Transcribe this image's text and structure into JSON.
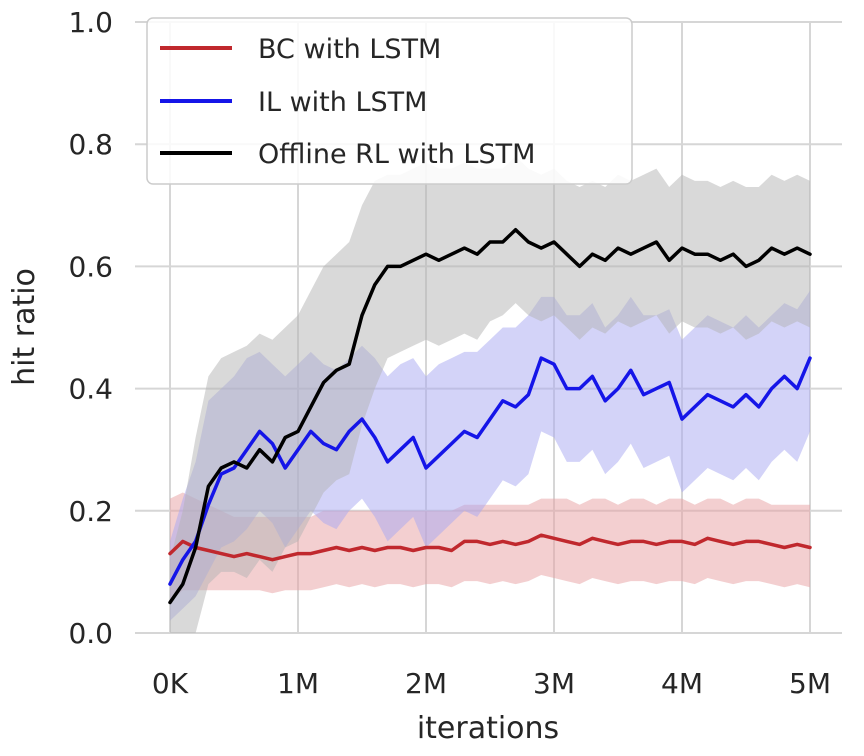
{
  "chart_data": {
    "type": "line",
    "title": "",
    "xlabel": "iterations",
    "ylabel": "hit ratio",
    "xlim": [
      0,
      5000000
    ],
    "ylim": [
      0.0,
      1.0
    ],
    "grid": true,
    "legend_position": "top-left",
    "x_ticks": [
      0,
      1000000,
      2000000,
      3000000,
      4000000,
      5000000
    ],
    "x_tick_labels": [
      "0K",
      "1M",
      "2M",
      "3M",
      "4M",
      "5M"
    ],
    "y_ticks": [
      0.0,
      0.2,
      0.4,
      0.6,
      0.8,
      1.0
    ],
    "y_tick_labels": [
      "0.0",
      "0.2",
      "0.4",
      "0.6",
      "0.8",
      "1.0"
    ],
    "series": [
      {
        "name": "BC with LSTM",
        "color": "#c0282d",
        "band_color": "#e8a0a2",
        "x": [
          0,
          100000,
          200000,
          300000,
          400000,
          500000,
          600000,
          700000,
          800000,
          900000,
          1000000,
          1100000,
          1200000,
          1300000,
          1400000,
          1500000,
          1600000,
          1700000,
          1800000,
          1900000,
          2000000,
          2100000,
          2200000,
          2300000,
          2400000,
          2500000,
          2600000,
          2700000,
          2800000,
          2900000,
          3000000,
          3100000,
          3200000,
          3300000,
          3400000,
          3500000,
          3600000,
          3700000,
          3800000,
          3900000,
          4000000,
          4100000,
          4200000,
          4300000,
          4400000,
          4500000,
          4600000,
          4700000,
          4800000,
          4900000,
          5000000
        ],
        "y": [
          0.13,
          0.15,
          0.14,
          0.135,
          0.13,
          0.125,
          0.13,
          0.125,
          0.12,
          0.125,
          0.13,
          0.13,
          0.135,
          0.14,
          0.135,
          0.14,
          0.135,
          0.14,
          0.14,
          0.135,
          0.14,
          0.14,
          0.135,
          0.15,
          0.15,
          0.145,
          0.15,
          0.145,
          0.15,
          0.16,
          0.155,
          0.15,
          0.145,
          0.155,
          0.15,
          0.145,
          0.15,
          0.15,
          0.145,
          0.15,
          0.15,
          0.145,
          0.155,
          0.15,
          0.145,
          0.15,
          0.15,
          0.145,
          0.14,
          0.145,
          0.14
        ],
        "upper": [
          0.22,
          0.23,
          0.22,
          0.21,
          0.2,
          0.19,
          0.19,
          0.19,
          0.19,
          0.19,
          0.19,
          0.19,
          0.2,
          0.2,
          0.2,
          0.2,
          0.2,
          0.2,
          0.2,
          0.2,
          0.2,
          0.2,
          0.2,
          0.21,
          0.21,
          0.21,
          0.21,
          0.21,
          0.21,
          0.22,
          0.22,
          0.22,
          0.21,
          0.22,
          0.22,
          0.21,
          0.22,
          0.22,
          0.21,
          0.22,
          0.22,
          0.21,
          0.22,
          0.22,
          0.21,
          0.22,
          0.22,
          0.21,
          0.21,
          0.21,
          0.21
        ],
        "lower": [
          0.05,
          0.07,
          0.07,
          0.07,
          0.07,
          0.07,
          0.07,
          0.07,
          0.065,
          0.07,
          0.07,
          0.07,
          0.075,
          0.08,
          0.075,
          0.08,
          0.075,
          0.08,
          0.08,
          0.075,
          0.08,
          0.08,
          0.075,
          0.085,
          0.085,
          0.08,
          0.085,
          0.08,
          0.085,
          0.095,
          0.09,
          0.085,
          0.08,
          0.09,
          0.085,
          0.08,
          0.085,
          0.085,
          0.08,
          0.085,
          0.085,
          0.08,
          0.09,
          0.085,
          0.08,
          0.085,
          0.085,
          0.08,
          0.075,
          0.08,
          0.075
        ]
      },
      {
        "name": "IL with LSTM",
        "color": "#1515e8",
        "band_color": "#a8a8f2",
        "x": [
          0,
          100000,
          200000,
          300000,
          400000,
          500000,
          600000,
          700000,
          800000,
          900000,
          1000000,
          1100000,
          1200000,
          1300000,
          1400000,
          1500000,
          1600000,
          1700000,
          1800000,
          1900000,
          2000000,
          2100000,
          2200000,
          2300000,
          2400000,
          2500000,
          2600000,
          2700000,
          2800000,
          2900000,
          3000000,
          3100000,
          3200000,
          3300000,
          3400000,
          3500000,
          3600000,
          3700000,
          3800000,
          3900000,
          4000000,
          4100000,
          4200000,
          4300000,
          4400000,
          4500000,
          4600000,
          4700000,
          4800000,
          4900000,
          5000000
        ],
        "y": [
          0.08,
          0.12,
          0.15,
          0.21,
          0.26,
          0.27,
          0.3,
          0.33,
          0.31,
          0.27,
          0.3,
          0.33,
          0.31,
          0.3,
          0.33,
          0.35,
          0.32,
          0.28,
          0.3,
          0.32,
          0.27,
          0.29,
          0.31,
          0.33,
          0.32,
          0.35,
          0.38,
          0.37,
          0.39,
          0.45,
          0.44,
          0.4,
          0.4,
          0.42,
          0.38,
          0.4,
          0.43,
          0.39,
          0.4,
          0.41,
          0.35,
          0.37,
          0.39,
          0.38,
          0.37,
          0.39,
          0.37,
          0.4,
          0.42,
          0.4,
          0.45
        ],
        "upper": [
          0.15,
          0.22,
          0.28,
          0.38,
          0.4,
          0.42,
          0.45,
          0.46,
          0.44,
          0.42,
          0.44,
          0.46,
          0.44,
          0.43,
          0.45,
          0.47,
          0.45,
          0.42,
          0.44,
          0.45,
          0.42,
          0.44,
          0.45,
          0.46,
          0.46,
          0.48,
          0.5,
          0.5,
          0.52,
          0.55,
          0.55,
          0.52,
          0.52,
          0.54,
          0.5,
          0.52,
          0.55,
          0.52,
          0.52,
          0.53,
          0.48,
          0.5,
          0.52,
          0.51,
          0.5,
          0.52,
          0.5,
          0.52,
          0.54,
          0.53,
          0.56
        ],
        "lower": [
          0.02,
          0.04,
          0.06,
          0.1,
          0.14,
          0.15,
          0.17,
          0.2,
          0.18,
          0.14,
          0.17,
          0.2,
          0.18,
          0.17,
          0.2,
          0.22,
          0.19,
          0.15,
          0.17,
          0.19,
          0.14,
          0.16,
          0.18,
          0.2,
          0.19,
          0.22,
          0.25,
          0.24,
          0.26,
          0.33,
          0.32,
          0.28,
          0.28,
          0.3,
          0.26,
          0.28,
          0.31,
          0.27,
          0.28,
          0.29,
          0.23,
          0.25,
          0.27,
          0.26,
          0.25,
          0.27,
          0.25,
          0.28,
          0.3,
          0.28,
          0.33
        ]
      },
      {
        "name": "Offline RL with LSTM",
        "color": "#000000",
        "band_color": "#b3b3b3",
        "x": [
          0,
          100000,
          200000,
          300000,
          400000,
          500000,
          600000,
          700000,
          800000,
          900000,
          1000000,
          1100000,
          1200000,
          1300000,
          1400000,
          1500000,
          1600000,
          1700000,
          1800000,
          1900000,
          2000000,
          2100000,
          2200000,
          2300000,
          2400000,
          2500000,
          2600000,
          2700000,
          2800000,
          2900000,
          3000000,
          3100000,
          3200000,
          3300000,
          3400000,
          3500000,
          3600000,
          3700000,
          3800000,
          3900000,
          4000000,
          4100000,
          4200000,
          4300000,
          4400000,
          4500000,
          4600000,
          4700000,
          4800000,
          4900000,
          5000000
        ],
        "y": [
          0.05,
          0.08,
          0.14,
          0.24,
          0.27,
          0.28,
          0.27,
          0.3,
          0.28,
          0.32,
          0.33,
          0.37,
          0.41,
          0.43,
          0.44,
          0.52,
          0.57,
          0.6,
          0.6,
          0.61,
          0.62,
          0.61,
          0.62,
          0.63,
          0.62,
          0.64,
          0.64,
          0.66,
          0.64,
          0.63,
          0.64,
          0.62,
          0.6,
          0.62,
          0.61,
          0.63,
          0.62,
          0.63,
          0.64,
          0.61,
          0.63,
          0.62,
          0.62,
          0.61,
          0.62,
          0.6,
          0.61,
          0.63,
          0.62,
          0.63,
          0.62
        ],
        "upper": [
          0.12,
          0.2,
          0.32,
          0.42,
          0.45,
          0.46,
          0.47,
          0.49,
          0.48,
          0.5,
          0.52,
          0.56,
          0.6,
          0.62,
          0.64,
          0.7,
          0.74,
          0.75,
          0.75,
          0.76,
          0.77,
          0.76,
          0.76,
          0.77,
          0.76,
          0.76,
          0.76,
          0.78,
          0.76,
          0.75,
          0.76,
          0.74,
          0.73,
          0.74,
          0.73,
          0.75,
          0.74,
          0.75,
          0.76,
          0.73,
          0.75,
          0.74,
          0.74,
          0.73,
          0.74,
          0.73,
          0.73,
          0.75,
          0.74,
          0.75,
          0.74
        ],
        "lower": [
          0.0,
          0.0,
          0.0,
          0.08,
          0.1,
          0.1,
          0.09,
          0.12,
          0.1,
          0.14,
          0.15,
          0.19,
          0.23,
          0.25,
          0.26,
          0.34,
          0.4,
          0.45,
          0.46,
          0.47,
          0.48,
          0.47,
          0.48,
          0.49,
          0.48,
          0.51,
          0.52,
          0.54,
          0.52,
          0.51,
          0.52,
          0.5,
          0.48,
          0.5,
          0.49,
          0.51,
          0.5,
          0.51,
          0.52,
          0.49,
          0.51,
          0.5,
          0.5,
          0.49,
          0.5,
          0.48,
          0.49,
          0.51,
          0.5,
          0.51,
          0.5
        ]
      }
    ]
  }
}
